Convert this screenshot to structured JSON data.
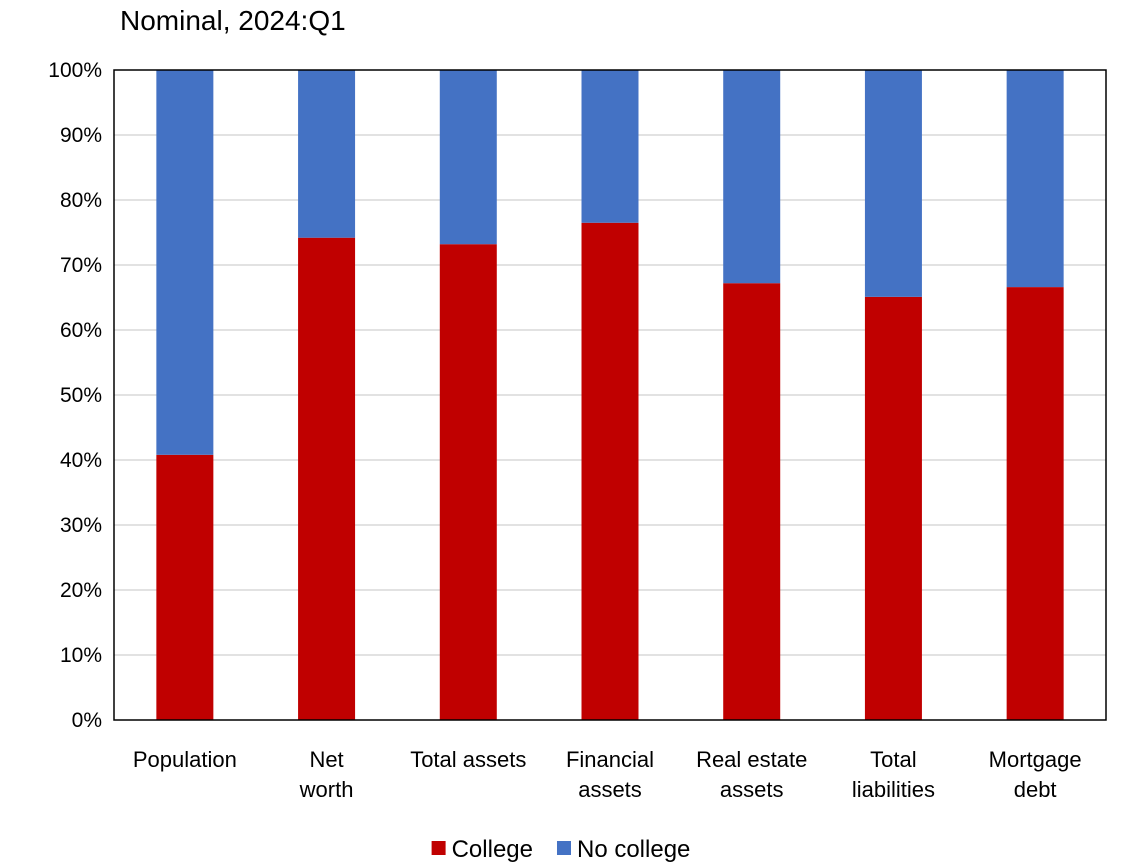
{
  "chart_data": {
    "type": "bar",
    "stacked": true,
    "subtitle": "Nominal, 2024:Q1",
    "categories": [
      [
        "Population"
      ],
      [
        "Net",
        "worth"
      ],
      [
        "Total assets"
      ],
      [
        "Financial",
        "assets"
      ],
      [
        "Real estate",
        "assets"
      ],
      [
        "Total",
        "liabilities"
      ],
      [
        "Mortgage",
        "debt"
      ]
    ],
    "series": [
      {
        "name": "College",
        "color": "#C00000",
        "values": [
          40.8,
          74.2,
          73.2,
          76.5,
          67.2,
          65.1,
          66.6
        ]
      },
      {
        "name": "No college",
        "color": "#4472C4",
        "values": [
          59.2,
          25.8,
          26.8,
          23.5,
          32.8,
          34.9,
          33.4
        ]
      }
    ],
    "ylim": [
      0,
      100
    ],
    "yticks": [
      {
        "value": 0,
        "label": "0%"
      },
      {
        "value": 10,
        "label": "10%"
      },
      {
        "value": 20,
        "label": "20%"
      },
      {
        "value": 30,
        "label": "30%"
      },
      {
        "value": 40,
        "label": "40%"
      },
      {
        "value": 50,
        "label": "50%"
      },
      {
        "value": 60,
        "label": "60%"
      },
      {
        "value": 70,
        "label": "70%"
      },
      {
        "value": 80,
        "label": "80%"
      },
      {
        "value": 90,
        "label": "90%"
      },
      {
        "value": 100,
        "label": "100%"
      }
    ],
    "grid": true,
    "legend": "bottom-center"
  }
}
